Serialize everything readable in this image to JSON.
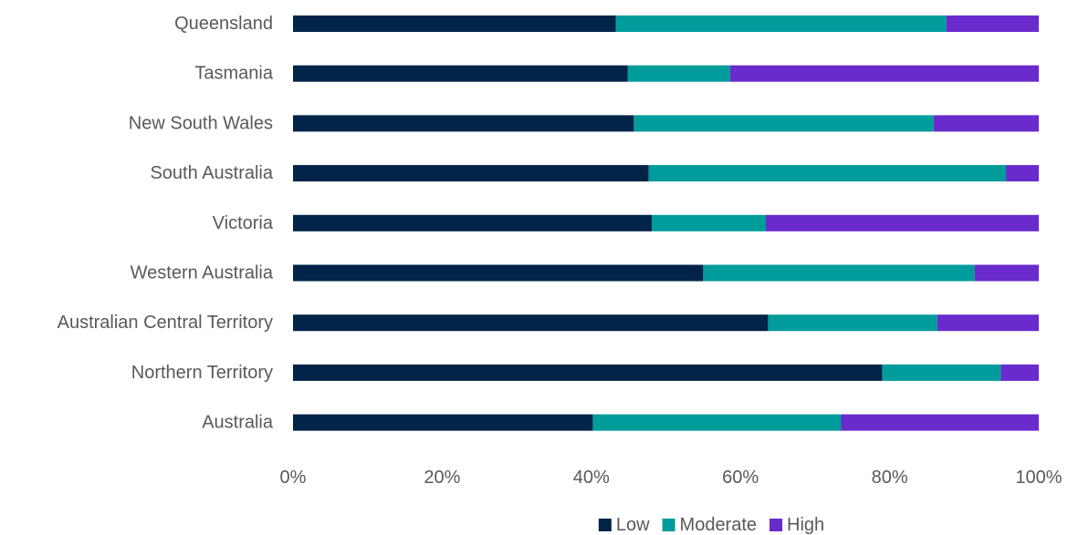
{
  "chart_data": {
    "type": "bar",
    "orientation": "horizontal",
    "stacked": true,
    "percent": true,
    "categories": [
      "Queensland",
      "Tasmania",
      "New South Wales",
      "South Australia",
      "Victoria",
      "Western Australia",
      "Australian Central Territory",
      "Northern Territory",
      "Australia"
    ],
    "series": [
      {
        "name": "Low",
        "color": "#022448",
        "values": [
          43.3,
          44.9,
          45.7,
          47.7,
          48.1,
          55.0,
          63.7,
          79.0,
          40.2
        ]
      },
      {
        "name": "Moderate",
        "color": "#009c9b",
        "values": [
          44.3,
          13.7,
          40.2,
          47.9,
          15.3,
          36.4,
          22.7,
          15.9,
          33.3
        ]
      },
      {
        "name": "High",
        "color": "#6a2bcc",
        "values": [
          12.4,
          41.4,
          14.1,
          4.4,
          36.6,
          8.6,
          13.6,
          5.1,
          26.5
        ]
      }
    ],
    "xlim": [
      0,
      100
    ],
    "xticks": [
      "0%",
      "20%",
      "40%",
      "60%",
      "80%",
      "100%"
    ],
    "legend_position": "bottom",
    "grid": false
  }
}
